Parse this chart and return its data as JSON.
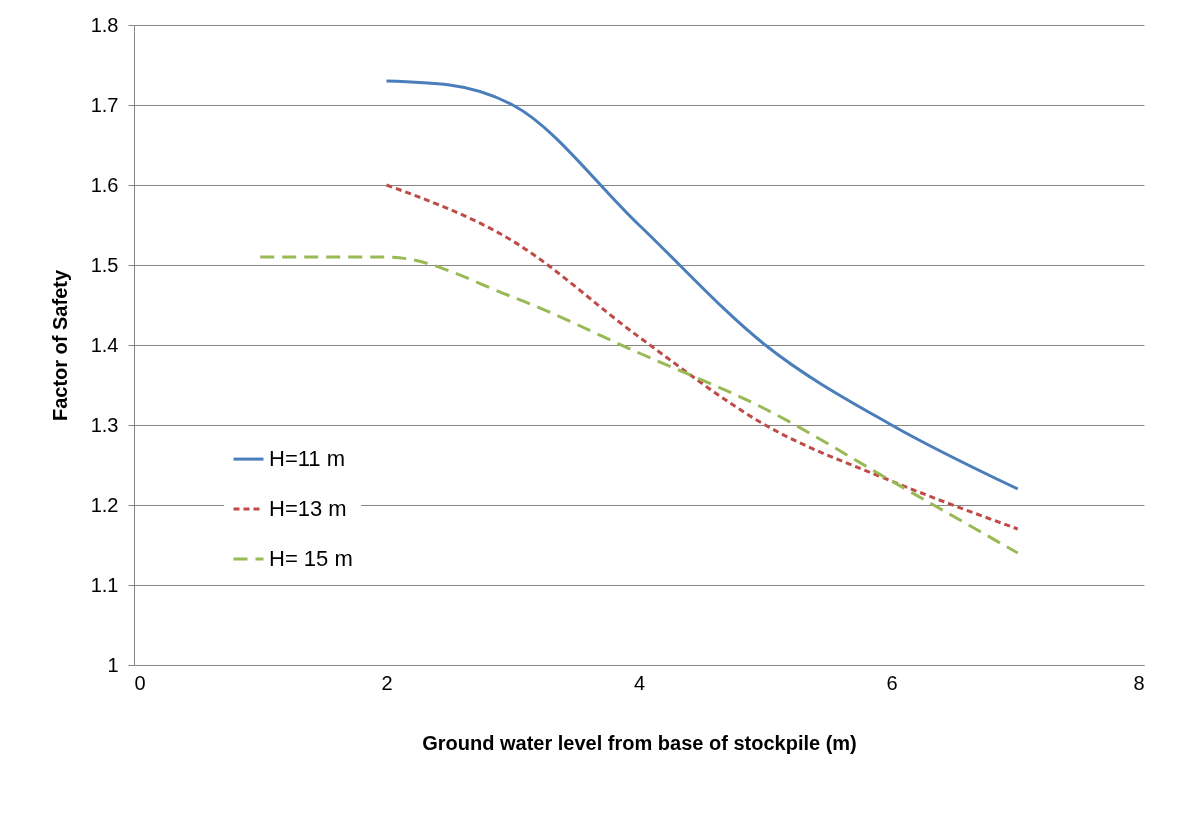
{
  "chart_data": {
    "type": "line",
    "xlabel": "Ground water level from base of stockpile (m)",
    "ylabel": "Factor of Safety",
    "xlim": [
      0,
      8
    ],
    "xticks": [
      0,
      2,
      4,
      6,
      8
    ],
    "ylim": [
      1,
      1.8
    ],
    "yticks": [
      1,
      1.1,
      1.2,
      1.3,
      1.4,
      1.5,
      1.6,
      1.7,
      1.8
    ],
    "grid": "y",
    "legend": "left",
    "marker": "none",
    "series": [
      {
        "name": "H=11 m",
        "color": "#4a7ebb",
        "line_style": "solid",
        "x": [
          2,
          2.5,
          3,
          4,
          5,
          6,
          7
        ],
        "values": [
          1.73,
          1.725,
          1.7,
          1.55,
          1.4,
          1.3,
          1.22
        ]
      },
      {
        "name": "H=13 m",
        "color": "#be4b48",
        "line_style": "dotted",
        "x": [
          2,
          3,
          4,
          5,
          6,
          7
        ],
        "values": [
          1.6,
          1.53,
          1.41,
          1.3,
          1.23,
          1.17
        ]
      },
      {
        "name": "H= 15 m",
        "color": "#98b954",
        "line_style": "dashed",
        "x": [
          1,
          2,
          3,
          4,
          5,
          6,
          7
        ],
        "values": [
          1.51,
          1.51,
          1.46,
          1.39,
          1.32,
          1.23,
          1.14
        ]
      }
    ]
  }
}
